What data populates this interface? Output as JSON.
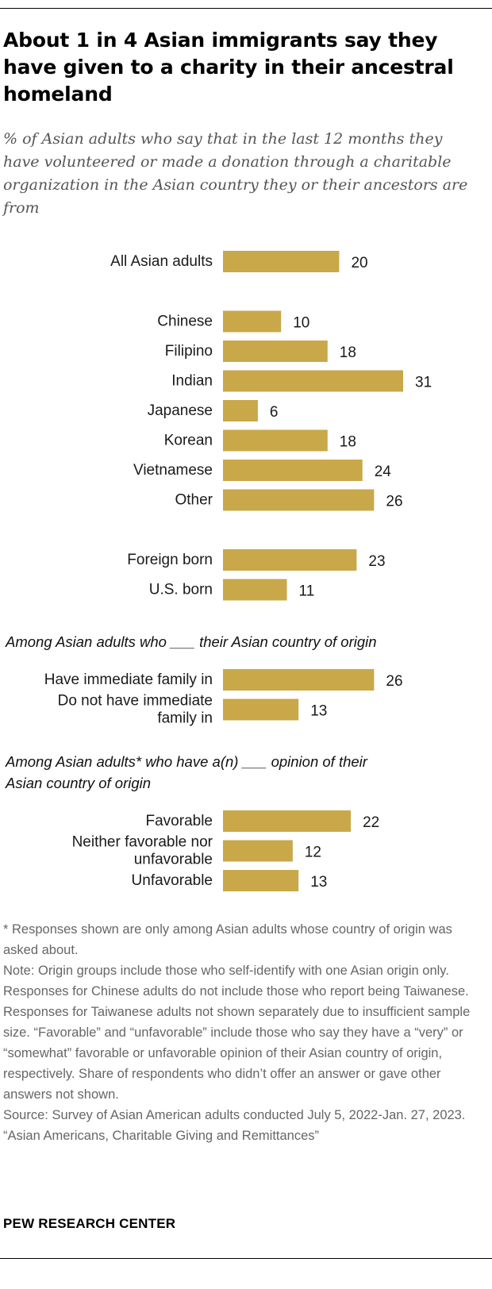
{
  "title": "About 1 in 4 Asian immigrants say they have given to a charity in their ancestral homeland",
  "subtitle": "% of Asian adults who say that in the last 12 months they have volunteered or made a donation through a charitable organization in the Asian country they or their ancestors are from",
  "chart_data": {
    "type": "bar",
    "orientation": "horizontal",
    "bar_color": "#C9A84A",
    "xlim": [
      0,
      31
    ],
    "groups": [
      {
        "header": "",
        "rows": [
          {
            "label": [
              "All Asian adults"
            ],
            "value": 20
          }
        ]
      },
      {
        "header": "",
        "rows": [
          {
            "label": [
              "Chinese"
            ],
            "value": 10
          },
          {
            "label": [
              "Filipino"
            ],
            "value": 18
          },
          {
            "label": [
              "Indian"
            ],
            "value": 31
          },
          {
            "label": [
              "Japanese"
            ],
            "value": 6
          },
          {
            "label": [
              "Korean"
            ],
            "value": 18
          },
          {
            "label": [
              "Vietnamese"
            ],
            "value": 24
          },
          {
            "label": [
              "Other"
            ],
            "value": 26
          }
        ]
      },
      {
        "header": "",
        "rows": [
          {
            "label": [
              "Foreign born"
            ],
            "value": 23
          },
          {
            "label": [
              "U.S. born"
            ],
            "value": 11
          }
        ]
      },
      {
        "header": [
          "Among Asian adults who ___ their Asian country of origin"
        ],
        "rows": [
          {
            "label": [
              "Have immediate family in"
            ],
            "value": 26
          },
          {
            "label": [
              "Do not have immediate",
              "family in"
            ],
            "value": 13
          }
        ]
      },
      {
        "header": [
          "Among Asian adults* who have a(n) ___ opinion of their",
          "Asian country of origin"
        ],
        "rows": [
          {
            "label": [
              "Favorable"
            ],
            "value": 22
          },
          {
            "label": [
              "Neither favorable nor",
              "unfavorable"
            ],
            "value": 12
          },
          {
            "label": [
              "Unfavorable"
            ],
            "value": 13
          }
        ]
      }
    ]
  },
  "notes": {
    "asterisk": "* Responses shown are only among Asian adults whose country of origin was asked about.",
    "note": "Note: Origin groups include those who self-identify with one Asian origin only. Responses for Chinese adults do not include those who report being Taiwanese. Responses for Taiwanese adults not shown separately due to insufficient sample size. “Favorable” and “unfavorable” include those who say they have a “very” or “somewhat” favorable or unfavorable opinion of their Asian country of origin, respectively. Share of respondents who didn’t offer an answer or gave other answers not shown.",
    "source": "Source: Survey of Asian American adults conducted July 5, 2022-Jan. 27, 2023.",
    "report": "“Asian Americans, Charitable Giving and Remittances”"
  },
  "brand": "PEW RESEARCH CENTER"
}
